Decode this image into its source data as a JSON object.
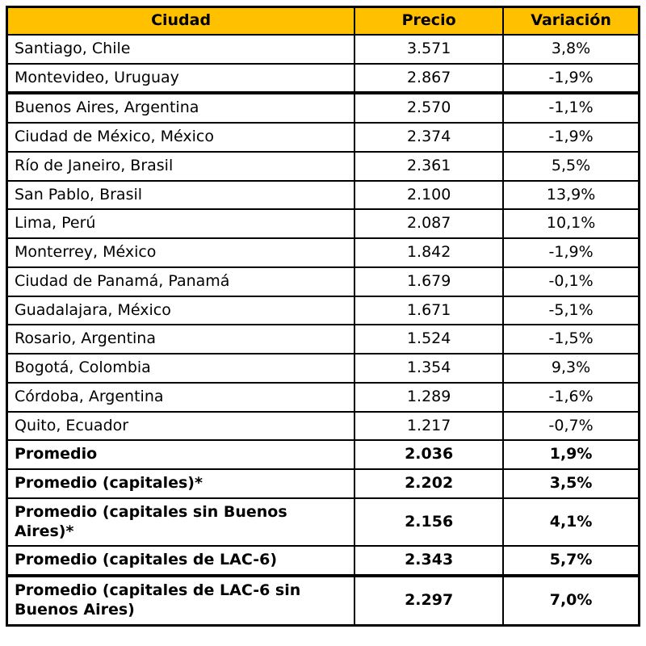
{
  "accent_color": "#FFC000",
  "chart_data": {
    "type": "table",
    "title": "",
    "columns": [
      "Ciudad",
      "Precio",
      "Variación"
    ],
    "rows": [
      {
        "ciudad": "Santiago, Chile",
        "precio": "3.571",
        "variacion": "3,8%",
        "summary": false,
        "group_end": false
      },
      {
        "ciudad": "Montevideo, Uruguay",
        "precio": "2.867",
        "variacion": "-1,9%",
        "summary": false,
        "group_end": true
      },
      {
        "ciudad": "Buenos Aires, Argentina",
        "precio": "2.570",
        "variacion": "-1,1%",
        "summary": false,
        "group_end": false
      },
      {
        "ciudad": "Ciudad de México, México",
        "precio": "2.374",
        "variacion": "-1,9%",
        "summary": false,
        "group_end": false
      },
      {
        "ciudad": "Río de Janeiro, Brasil",
        "precio": "2.361",
        "variacion": "5,5%",
        "summary": false,
        "group_end": false
      },
      {
        "ciudad": "San Pablo, Brasil",
        "precio": "2.100",
        "variacion": "13,9%",
        "summary": false,
        "group_end": false
      },
      {
        "ciudad": "Lima, Perú",
        "precio": "2.087",
        "variacion": "10,1%",
        "summary": false,
        "group_end": false
      },
      {
        "ciudad": "Monterrey, México",
        "precio": "1.842",
        "variacion": "-1,9%",
        "summary": false,
        "group_end": false
      },
      {
        "ciudad": "Ciudad de Panamá, Panamá",
        "precio": "1.679",
        "variacion": "-0,1%",
        "summary": false,
        "group_end": false
      },
      {
        "ciudad": "Guadalajara, México",
        "precio": "1.671",
        "variacion": "-5,1%",
        "summary": false,
        "group_end": false
      },
      {
        "ciudad": "Rosario, Argentina",
        "precio": "1.524",
        "variacion": "-1,5%",
        "summary": false,
        "group_end": false
      },
      {
        "ciudad": "Bogotá, Colombia",
        "precio": "1.354",
        "variacion": "9,3%",
        "summary": false,
        "group_end": false
      },
      {
        "ciudad": "Córdoba, Argentina",
        "precio": "1.289",
        "variacion": "-1,6%",
        "summary": false,
        "group_end": false
      },
      {
        "ciudad": "Quito, Ecuador",
        "precio": "1.217",
        "variacion": "-0,7%",
        "summary": false,
        "group_end": false
      },
      {
        "ciudad": "Promedio",
        "precio": "2.036",
        "variacion": "1,9%",
        "summary": true,
        "group_end": false
      },
      {
        "ciudad": "Promedio (capitales)*",
        "precio": "2.202",
        "variacion": "3,5%",
        "summary": true,
        "group_end": false
      },
      {
        "ciudad": "Promedio (capitales sin Buenos Aires)*",
        "precio": "2.156",
        "variacion": "4,1%",
        "summary": true,
        "group_end": false
      },
      {
        "ciudad": "Promedio (capitales de LAC-6)",
        "precio": "2.343",
        "variacion": "5,7%",
        "summary": true,
        "group_end": true
      },
      {
        "ciudad": "Promedio (capitales de LAC-6 sin Buenos Aires)",
        "precio": "2.297",
        "variacion": "7,0%",
        "summary": true,
        "group_end": false
      }
    ]
  }
}
